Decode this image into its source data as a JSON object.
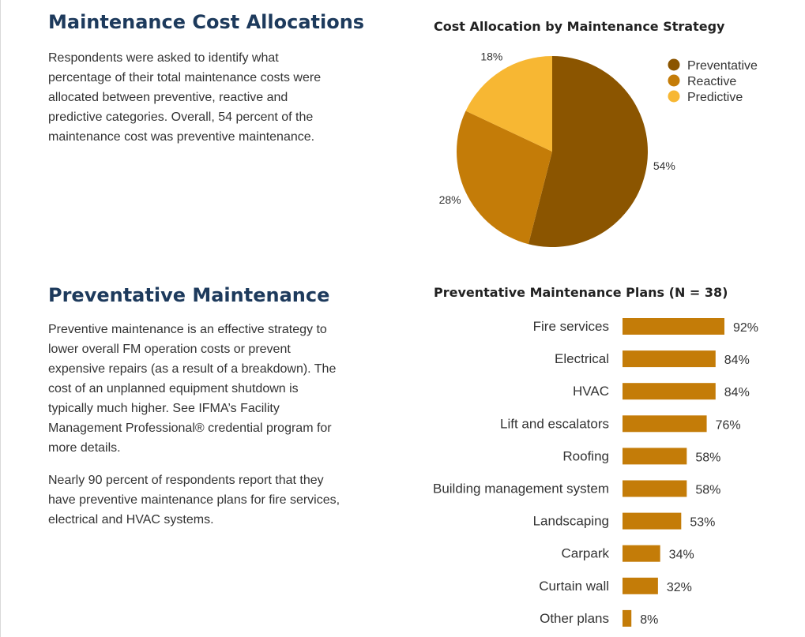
{
  "section1": {
    "title": "Maintenance Cost Allocations",
    "paragraph": "Respondents were asked to identify what percentage of their total maintenance costs were allocated between preventive, reactive and predictive categories. Overall, 54 percent of the maintenance cost was preventive maintenance."
  },
  "section2": {
    "title": "Preventative Maintenance",
    "paragraph1": "Preventive maintenance is an effective strategy to lower overall FM operation costs or prevent expensive repairs (as a result of a breakdown). The cost of an unplanned equipment shutdown is typically much higher. See IFMA’s Facility Management Professional® credential program for more details.",
    "paragraph2": "Nearly 90 percent of respondents report that they have preventive maintenance plans for fire services, electrical and HVAC systems."
  },
  "chart_data": [
    {
      "type": "pie",
      "title": "Cost Allocation by Maintenance Strategy",
      "labels": [
        "Preventative",
        "Reactive",
        "Predictive"
      ],
      "values": [
        54,
        28,
        18
      ],
      "value_labels": [
        "54%",
        "28%",
        "18%"
      ],
      "colors": [
        "#8b5500",
        "#c47c08",
        "#f7b733"
      ],
      "legend": "top-right"
    },
    {
      "type": "bar",
      "orientation": "horizontal",
      "title": "Preventative Maintenance Plans (N = 38)",
      "categories": [
        "Fire services",
        "Electrical",
        "HVAC",
        "Lift and escalators",
        "Roofing",
        "Building management system",
        "Landscaping",
        "Carpark",
        "Curtain wall",
        "Other plans"
      ],
      "values": [
        92,
        84,
        84,
        76,
        58,
        58,
        53,
        34,
        32,
        8
      ],
      "value_labels": [
        "92%",
        "84%",
        "84%",
        "76%",
        "58%",
        "58%",
        "53%",
        "34%",
        "32%",
        "8%"
      ],
      "color": "#c47c08",
      "xlim": [
        0,
        100
      ],
      "grid": false
    }
  ]
}
